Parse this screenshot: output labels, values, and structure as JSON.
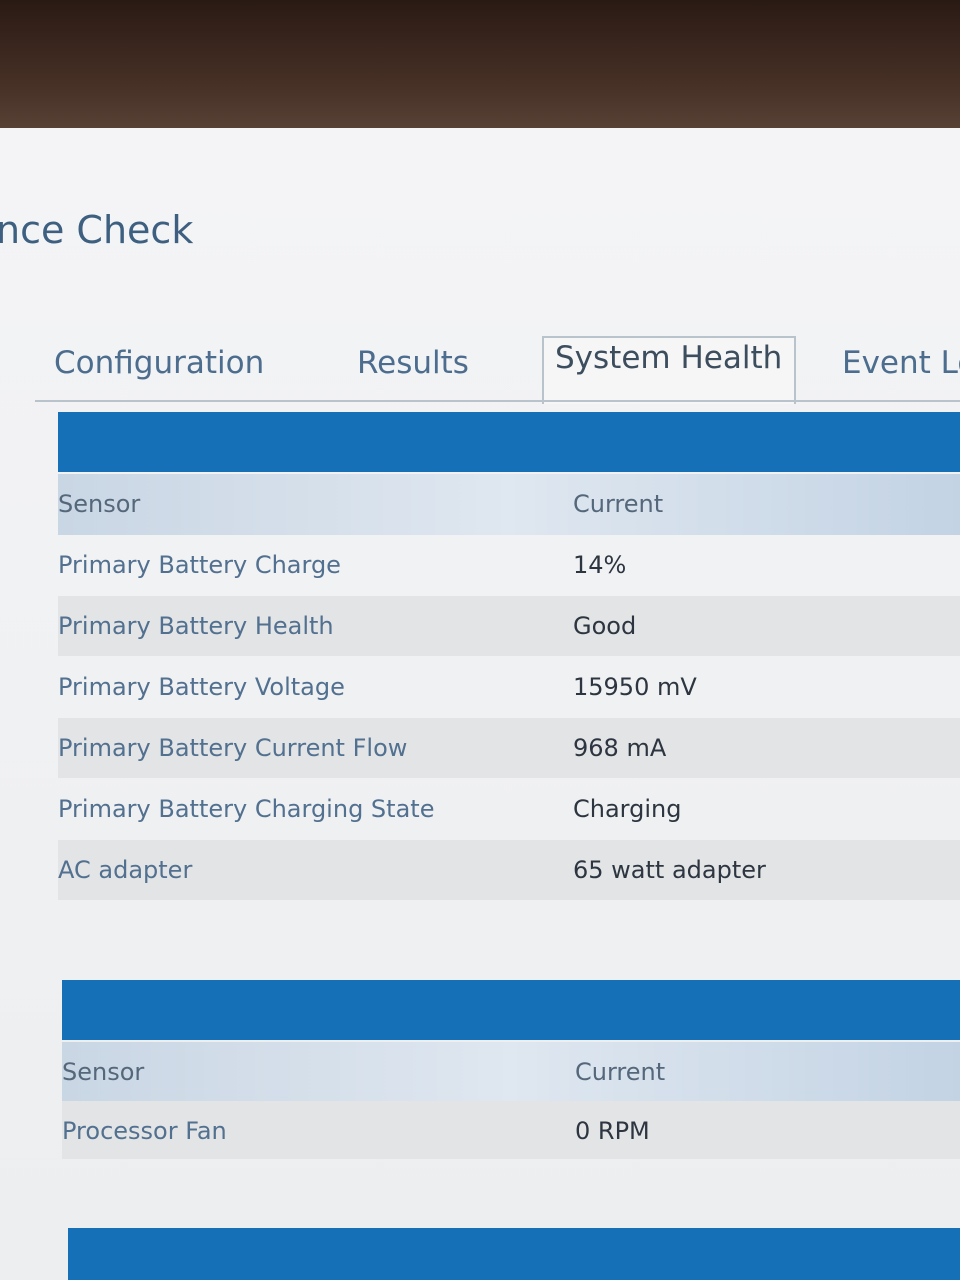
{
  "header": {
    "title": "nce Check"
  },
  "tabs": [
    "Configuration",
    "Results",
    "System Health",
    "Event Lo"
  ],
  "tables": [
    {
      "columns": [
        "Sensor",
        "Current"
      ],
      "rows": [
        [
          "Primary Battery Charge",
          "14%"
        ],
        [
          "Primary Battery Health",
          "Good"
        ],
        [
          "Primary Battery Voltage",
          "15950 mV"
        ],
        [
          "Primary Battery Current Flow",
          "968 mA"
        ],
        [
          "Primary Battery Charging State",
          "Charging"
        ],
        [
          "AC adapter",
          "65 watt adapter"
        ]
      ]
    },
    {
      "columns": [
        "Sensor",
        "Current"
      ],
      "rows": [
        [
          "Processor Fan",
          "0 RPM"
        ]
      ]
    }
  ]
}
